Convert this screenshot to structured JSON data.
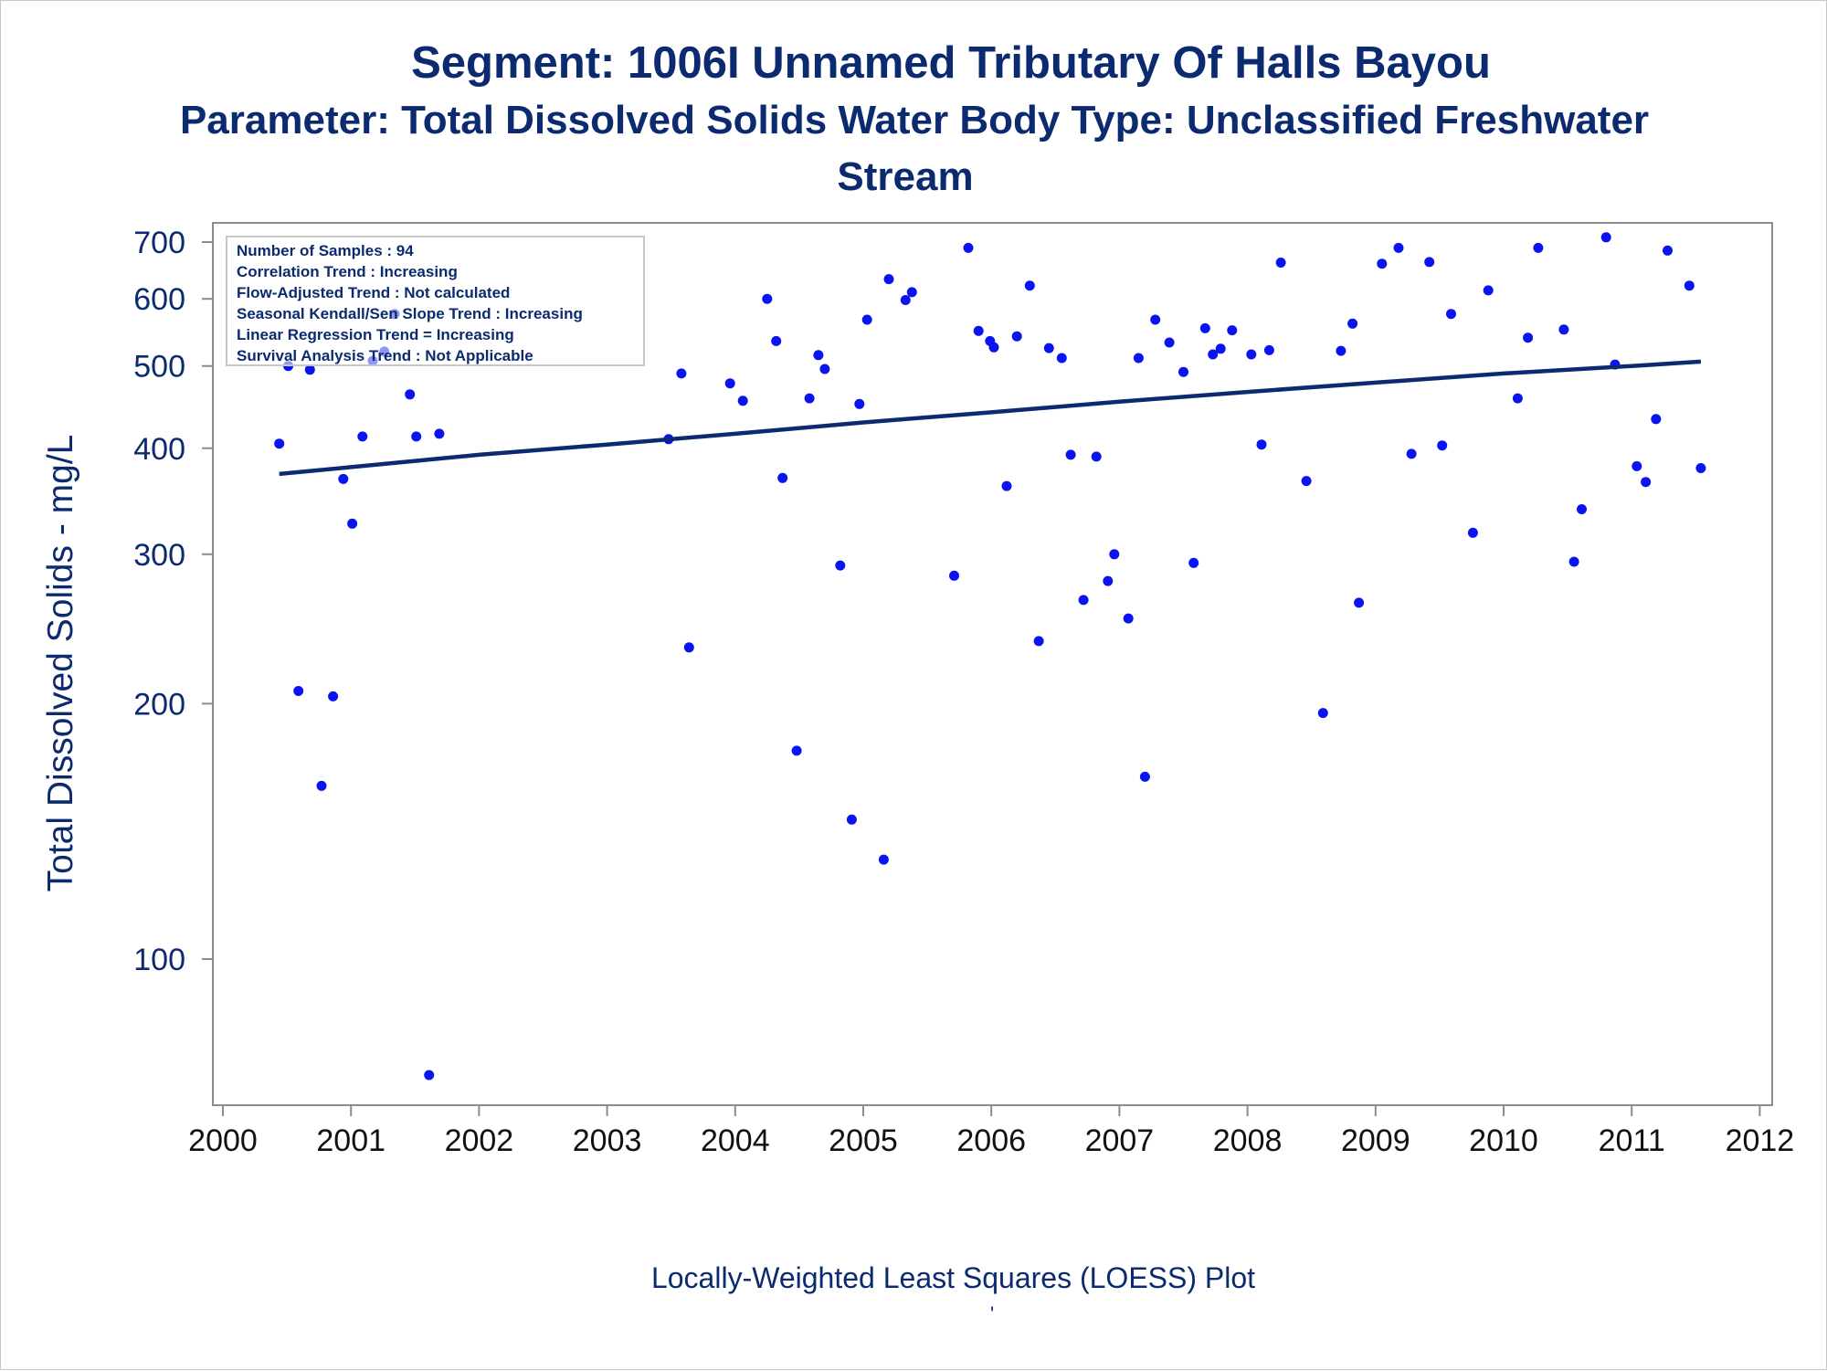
{
  "title_line1": "Segment: 1006I  Unnamed Tributary Of Halls Bayou",
  "title_line2": "Parameter: Total Dissolved Solids   Water Body Type: Unclassified Freshwater",
  "title_line3": "Stream",
  "footnote": "Locally-Weighted Least Squares (LOESS) Plot",
  "footnote_mark": "'",
  "stats_box": [
    "Number of Samples : 94",
    "Correlation Trend : Increasing",
    "Flow-Adjusted Trend : Not calculated",
    "Seasonal Kendall/Sen Slope Trend : Increasing",
    "Linear Regression Trend = Increasing",
    "Survival Analysis Trend : Not Applicable"
  ],
  "colors": {
    "text": "#0b2a6f",
    "points": "#0a14f0",
    "trend_line": "#0b2a6f",
    "axis": "#8c8c8c"
  },
  "chart_data": {
    "type": "scatter",
    "ylabel": "Total Dissolved Solids - mg/L",
    "xlabel": "",
    "y_scale": "log",
    "xlim": [
      2000,
      2012
    ],
    "ylim": [
      72,
      725
    ],
    "x_ticks": [
      2000,
      2001,
      2002,
      2003,
      2004,
      2005,
      2006,
      2007,
      2008,
      2009,
      2010,
      2011,
      2012
    ],
    "x_tick_labels": [
      "2000",
      "2001",
      "2002",
      "2003",
      "2004",
      "2005",
      "2006",
      "2007",
      "2008",
      "2009",
      "2010",
      "2011",
      "2012"
    ],
    "y_ticks": [
      100,
      200,
      300,
      400,
      500,
      600,
      700
    ],
    "y_tick_labels": [
      "100",
      "200",
      "300",
      "400",
      "500",
      "600",
      "700"
    ],
    "series": [
      {
        "kind": "points",
        "points": [
          [
            2000.44,
            405
          ],
          [
            2000.51,
            500
          ],
          [
            2000.59,
            207
          ],
          [
            2000.68,
            495
          ],
          [
            2000.77,
            160
          ],
          [
            2000.86,
            204
          ],
          [
            2000.94,
            368
          ],
          [
            2001.01,
            326
          ],
          [
            2001.09,
            413
          ],
          [
            2001.17,
            507
          ],
          [
            2001.26,
            520
          ],
          [
            2001.34,
            576
          ],
          [
            2001.46,
            463
          ],
          [
            2001.51,
            413
          ],
          [
            2001.61,
            73
          ],
          [
            2001.69,
            416
          ],
          [
            2003.48,
            410
          ],
          [
            2003.58,
            490
          ],
          [
            2003.64,
            233
          ],
          [
            2003.96,
            477
          ],
          [
            2004.06,
            455
          ],
          [
            2004.25,
            600
          ],
          [
            2004.32,
            535
          ],
          [
            2004.37,
            369
          ],
          [
            2004.48,
            176
          ],
          [
            2004.58,
            458
          ],
          [
            2004.65,
            515
          ],
          [
            2004.7,
            496
          ],
          [
            2004.82,
            291
          ],
          [
            2004.91,
            146
          ],
          [
            2004.97,
            451
          ],
          [
            2005.03,
            567
          ],
          [
            2005.16,
            131
          ],
          [
            2005.2,
            633
          ],
          [
            2005.33,
            598
          ],
          [
            2005.38,
            611
          ],
          [
            2005.71,
            283
          ],
          [
            2005.82,
            689
          ],
          [
            2005.9,
            550
          ],
          [
            2005.99,
            535
          ],
          [
            2006.02,
            526
          ],
          [
            2006.12,
            361
          ],
          [
            2006.2,
            542
          ],
          [
            2006.3,
            622
          ],
          [
            2006.37,
            237
          ],
          [
            2006.45,
            525
          ],
          [
            2006.55,
            511
          ],
          [
            2006.62,
            393
          ],
          [
            2006.72,
            265
          ],
          [
            2006.82,
            391
          ],
          [
            2006.91,
            279
          ],
          [
            2006.96,
            300
          ],
          [
            2007.07,
            252
          ],
          [
            2007.15,
            511
          ],
          [
            2007.2,
            164
          ],
          [
            2007.28,
            567
          ],
          [
            2007.39,
            533
          ],
          [
            2007.5,
            492
          ],
          [
            2007.58,
            293
          ],
          [
            2007.67,
            554
          ],
          [
            2007.73,
            516
          ],
          [
            2007.79,
            524
          ],
          [
            2007.88,
            551
          ],
          [
            2008.03,
            516
          ],
          [
            2008.11,
            404
          ],
          [
            2008.17,
            522
          ],
          [
            2008.26,
            662
          ],
          [
            2008.46,
            366
          ],
          [
            2008.59,
            195
          ],
          [
            2008.73,
            521
          ],
          [
            2008.82,
            561
          ],
          [
            2008.87,
            263
          ],
          [
            2009.05,
            660
          ],
          [
            2009.18,
            689
          ],
          [
            2009.28,
            394
          ],
          [
            2009.42,
            663
          ],
          [
            2009.52,
            403
          ],
          [
            2009.59,
            576
          ],
          [
            2009.76,
            318
          ],
          [
            2009.88,
            614
          ],
          [
            2010.11,
            458
          ],
          [
            2010.19,
            540
          ],
          [
            2010.27,
            689
          ],
          [
            2010.47,
            552
          ],
          [
            2010.55,
            294
          ],
          [
            2010.61,
            339
          ],
          [
            2010.8,
            709
          ],
          [
            2010.87,
            502
          ],
          [
            2011.04,
            381
          ],
          [
            2011.11,
            365
          ],
          [
            2011.19,
            433
          ],
          [
            2011.28,
            684
          ],
          [
            2011.45,
            622
          ],
          [
            2011.54,
            379
          ]
        ]
      },
      {
        "kind": "loess_line",
        "points": [
          [
            2000.44,
            373
          ],
          [
            2001.0,
            380
          ],
          [
            2002.0,
            393
          ],
          [
            2003.0,
            404
          ],
          [
            2004.0,
            416
          ],
          [
            2005.0,
            429
          ],
          [
            2006.0,
            441
          ],
          [
            2007.0,
            454
          ],
          [
            2008.0,
            466
          ],
          [
            2009.0,
            478
          ],
          [
            2010.0,
            490
          ],
          [
            2011.0,
            500
          ],
          [
            2011.54,
            506
          ]
        ]
      }
    ]
  }
}
